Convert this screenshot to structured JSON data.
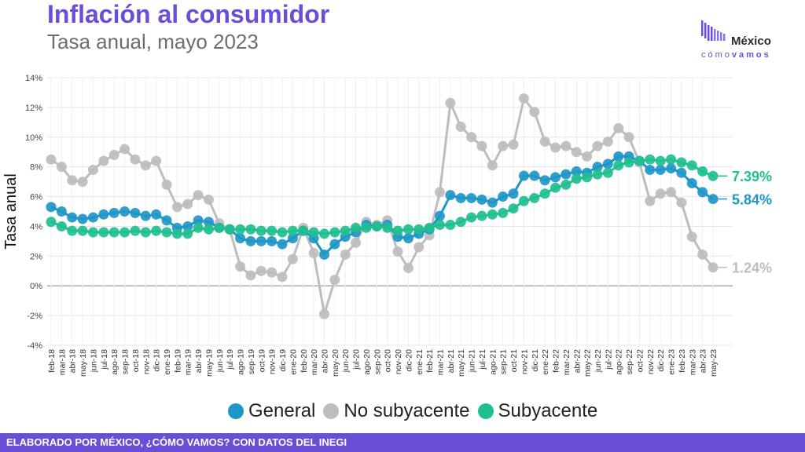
{
  "header": {
    "title": "Inflación al consumidor",
    "subtitle": "Tasa anual, mayo 2023"
  },
  "logo": {
    "name": "México",
    "tag_light": "cómo",
    "tag_bold": "vamos"
  },
  "footer": {
    "text": "ELABORADO POR MÉXICO, ¿CÓMO VAMOS? CON DATOS DEL INEGI"
  },
  "colors": {
    "brand": "#6a4fd6",
    "general": "#1f96c8",
    "no_subyacente": "#bdbdbd",
    "subyacente": "#1fbf8f"
  },
  "chart_data": {
    "type": "line",
    "ylabel": "Tasa anual",
    "ylim": [
      -4,
      14
    ],
    "yticks": [
      "-4%",
      "-2%",
      "0%",
      "2%",
      "4%",
      "6%",
      "8%",
      "10%",
      "12%",
      "14%"
    ],
    "grid": true,
    "legend_position": "bottom",
    "categories": [
      "feb-18",
      "mar-18",
      "abr-18",
      "may-18",
      "jun-18",
      "jul-18",
      "ago-18",
      "sep-18",
      "oct-18",
      "nov-18",
      "dic-18",
      "ene-19",
      "feb-19",
      "mar-19",
      "abr-19",
      "may-19",
      "jun-19",
      "jul-19",
      "ago-19",
      "sep-19",
      "oct-19",
      "nov-19",
      "dic-19",
      "ene-20",
      "feb-20",
      "mar-20",
      "abr-20",
      "may-20",
      "jun-20",
      "jul-20",
      "ago-20",
      "sep-20",
      "oct-20",
      "nov-20",
      "dic-20",
      "ene-21",
      "feb-21",
      "mar-21",
      "abr-21",
      "may-21",
      "jun-21",
      "jul-21",
      "ago-21",
      "sep-21",
      "oct-21",
      "nov-21",
      "dic-21",
      "ene-22",
      "feb-22",
      "mar-22",
      "abr-22",
      "may-22",
      "jun-22",
      "jul-22",
      "ago-22",
      "sep-22",
      "oct-22",
      "nov-22",
      "dic-22",
      "ene-23",
      "feb-23",
      "mar-23",
      "abr-23",
      "may-23"
    ],
    "series": [
      {
        "name": "No subyacente",
        "color": "#bdbdbd",
        "end_label": "1.24%",
        "values": [
          8.5,
          8.0,
          7.1,
          7.0,
          7.8,
          8.4,
          8.8,
          9.2,
          8.5,
          8.1,
          8.4,
          6.8,
          5.3,
          5.5,
          6.1,
          5.8,
          4.2,
          3.8,
          1.3,
          0.7,
          1.0,
          0.9,
          0.6,
          1.8,
          3.9,
          2.2,
          -1.9,
          0.4,
          2.1,
          2.9,
          4.3,
          4.1,
          4.4,
          2.3,
          1.2,
          2.6,
          3.4,
          6.3,
          12.3,
          10.7,
          10.0,
          9.4,
          8.1,
          9.4,
          9.5,
          12.6,
          11.7,
          9.7,
          9.3,
          9.4,
          9.0,
          8.7,
          9.4,
          9.7,
          10.6,
          10.0,
          8.3,
          5.7,
          6.2,
          6.3,
          5.6,
          3.3,
          2.1,
          1.24
        ]
      },
      {
        "name": "General",
        "color": "#1f96c8",
        "end_label": "5.84%",
        "values": [
          5.3,
          5.0,
          4.6,
          4.5,
          4.6,
          4.8,
          4.9,
          5.0,
          4.9,
          4.7,
          4.8,
          4.4,
          3.9,
          4.0,
          4.4,
          4.3,
          3.9,
          3.8,
          3.2,
          3.0,
          3.0,
          3.0,
          2.8,
          3.2,
          3.7,
          3.2,
          2.1,
          2.8,
          3.3,
          3.6,
          4.1,
          4.0,
          4.1,
          3.3,
          3.2,
          3.5,
          3.8,
          4.7,
          6.1,
          5.9,
          5.9,
          5.8,
          5.6,
          6.0,
          6.2,
          7.4,
          7.4,
          7.1,
          7.3,
          7.5,
          7.7,
          7.6,
          8.0,
          8.2,
          8.7,
          8.7,
          8.4,
          7.8,
          7.8,
          7.9,
          7.6,
          6.9,
          6.3,
          5.84
        ]
      },
      {
        "name": "Subyacente",
        "color": "#1fbf8f",
        "end_label": "7.39%",
        "values": [
          4.3,
          4.0,
          3.7,
          3.7,
          3.6,
          3.6,
          3.6,
          3.6,
          3.7,
          3.6,
          3.7,
          3.6,
          3.5,
          3.5,
          3.9,
          3.8,
          3.9,
          3.8,
          3.8,
          3.8,
          3.7,
          3.7,
          3.6,
          3.7,
          3.7,
          3.6,
          3.5,
          3.6,
          3.7,
          3.9,
          3.9,
          4.0,
          3.9,
          3.7,
          3.8,
          3.8,
          3.9,
          4.1,
          4.1,
          4.3,
          4.6,
          4.7,
          4.8,
          4.9,
          5.2,
          5.7,
          5.9,
          6.2,
          6.6,
          6.8,
          7.2,
          7.3,
          7.5,
          7.6,
          8.1,
          8.3,
          8.4,
          8.5,
          8.4,
          8.5,
          8.3,
          8.1,
          7.7,
          7.39
        ]
      }
    ]
  },
  "legend": {
    "items": [
      {
        "label": "General",
        "color": "#1f96c8"
      },
      {
        "label": "No subyacente",
        "color": "#bdbdbd"
      },
      {
        "label": "Subyacente",
        "color": "#1fbf8f"
      }
    ]
  }
}
